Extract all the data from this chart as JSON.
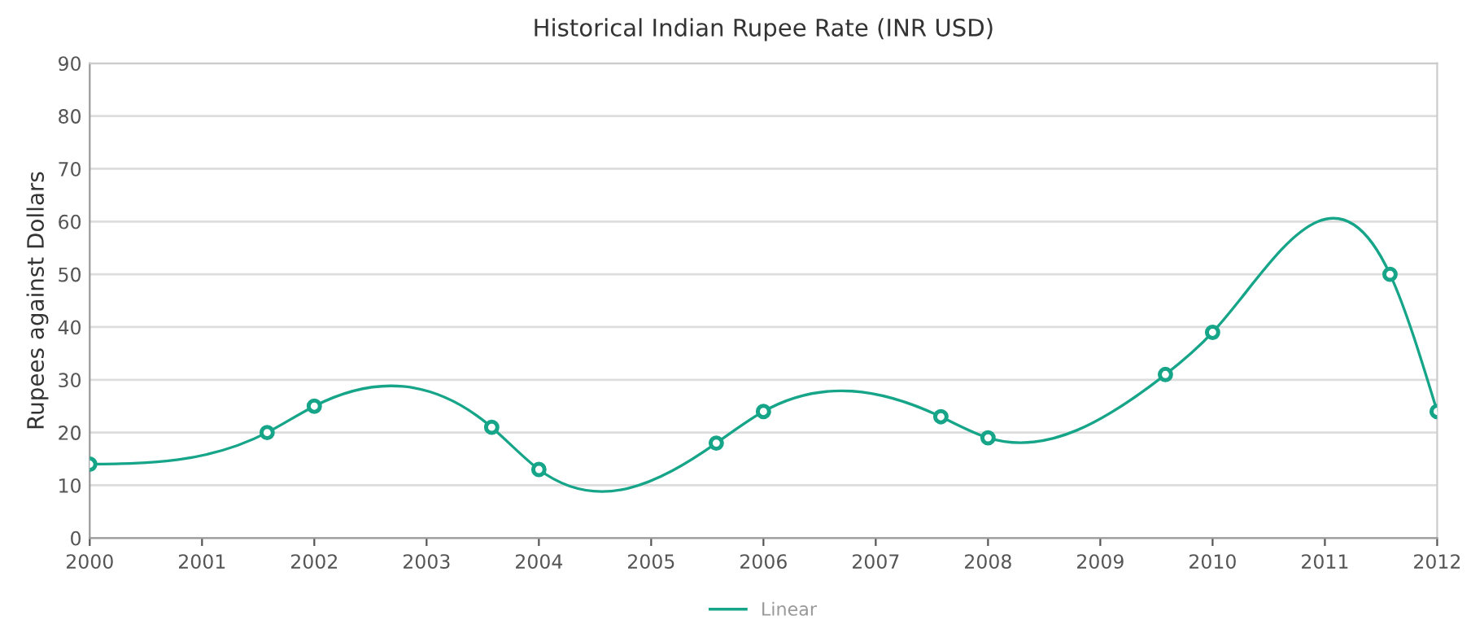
{
  "chart_data": {
    "type": "line",
    "title": "Historical Indian Rupee Rate (INR USD)",
    "ylabel": "Rupees against Dollars",
    "x": [
      2000,
      2001.58,
      2002,
      2003.58,
      2004,
      2005.58,
      2006,
      2007.58,
      2008,
      2009.58,
      2010,
      2011.58,
      2012
    ],
    "series": [
      {
        "name": "Linear",
        "color": "#17a589",
        "values": [
          14,
          20,
          25,
          21,
          13,
          18,
          24,
          23,
          19,
          31,
          39,
          50,
          24
        ]
      }
    ],
    "xlim": [
      2000,
      2012
    ],
    "xticks": [
      2000,
      2001,
      2002,
      2003,
      2004,
      2005,
      2006,
      2007,
      2008,
      2009,
      2010,
      2011,
      2012
    ],
    "ylim": [
      0,
      90
    ],
    "yticks": [
      0,
      10,
      20,
      30,
      40,
      50,
      60,
      70,
      80,
      90
    ],
    "grid": "y",
    "legend": "bottom",
    "marker": "circle",
    "line_style": "solid"
  }
}
